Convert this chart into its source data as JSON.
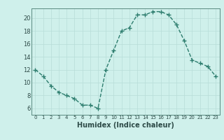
{
  "x": [
    0,
    1,
    2,
    3,
    4,
    5,
    6,
    7,
    8,
    9,
    10,
    11,
    12,
    13,
    14,
    15,
    16,
    17,
    18,
    19,
    20,
    21,
    22,
    23
  ],
  "y": [
    12,
    11,
    9.5,
    8.5,
    8,
    7.5,
    6.5,
    6.5,
    6,
    12,
    15,
    18,
    18.5,
    20.5,
    20.5,
    21,
    21,
    20.5,
    19,
    16.5,
    13.5,
    13,
    12.5,
    11
  ],
  "line_color": "#2d7d6e",
  "marker_color": "#2d7d6e",
  "bg_color": "#cff0eb",
  "grid_color": "#b8ddd8",
  "xlabel": "Humidex (Indice chaleur)",
  "ylim": [
    5,
    21.5
  ],
  "xlim": [
    -0.5,
    23.5
  ],
  "yticks": [
    6,
    8,
    10,
    12,
    14,
    16,
    18,
    20
  ],
  "xticks": [
    0,
    1,
    2,
    3,
    4,
    5,
    6,
    7,
    8,
    9,
    10,
    11,
    12,
    13,
    14,
    15,
    16,
    17,
    18,
    19,
    20,
    21,
    22,
    23
  ]
}
